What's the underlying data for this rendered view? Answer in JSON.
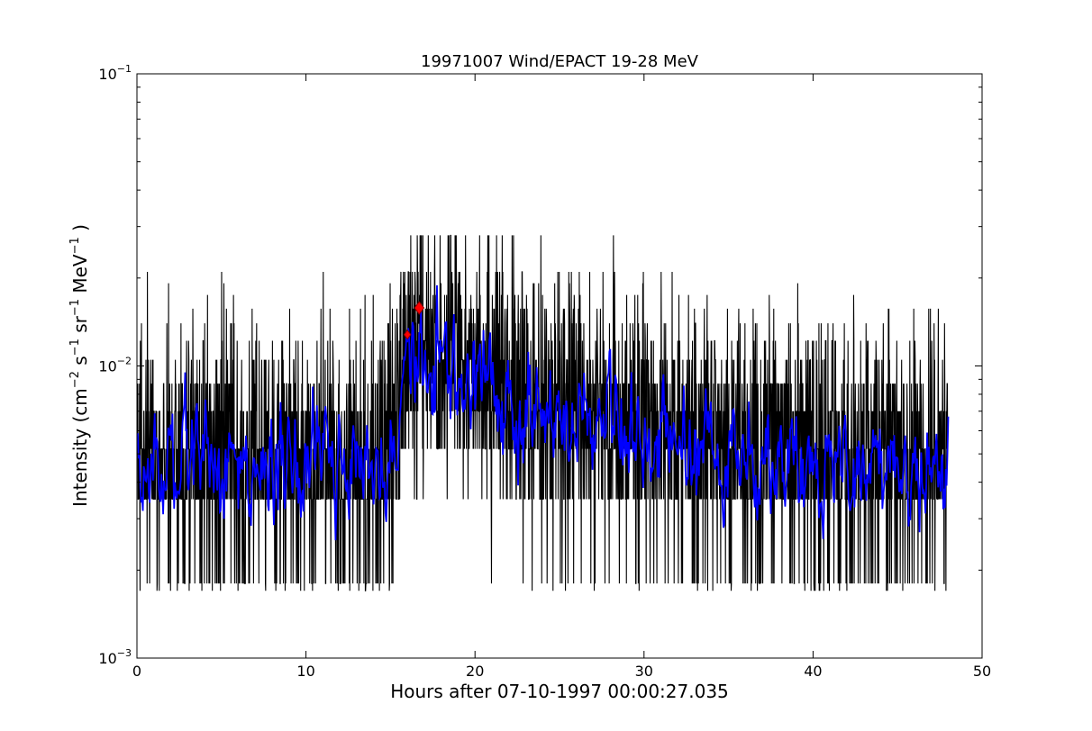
{
  "chart_data": {
    "type": "line",
    "title": "19971007 Wind/EPACT 19-28 MeV",
    "xlabel": "Hours after 07-10-1997 00:00:27.035",
    "ylabel_main": "Intensity (cm",
    "ylabel_parts": [
      {
        "text": "Intensity (cm",
        "sup": false
      },
      {
        "text": "−2",
        "sup": true
      },
      {
        "text": " s",
        "sup": false
      },
      {
        "text": "−1",
        "sup": true
      },
      {
        "text": " sr",
        "sup": false
      },
      {
        "text": "−1",
        "sup": true
      },
      {
        "text": " MeV",
        "sup": false
      },
      {
        "text": "−1",
        "sup": true
      },
      {
        "text": " )",
        "sup": false
      }
    ],
    "x_scale": "linear",
    "y_scale": "log",
    "xlim": [
      0,
      50
    ],
    "ylim": [
      0.001,
      0.1
    ],
    "x_ticks": [
      0,
      10,
      20,
      30,
      40,
      50
    ],
    "x_tick_labels": [
      "0",
      "10",
      "20",
      "30",
      "40",
      "50"
    ],
    "y_ticks": [
      {
        "value": 0.001,
        "base": "10",
        "exp": "−3"
      },
      {
        "value": 0.01,
        "base": "10",
        "exp": "−2"
      },
      {
        "value": 0.1,
        "base": "10",
        "exp": "−1"
      }
    ],
    "grid": false,
    "legend": "none",
    "series": [
      {
        "style": "raw-counts",
        "color": "#000000",
        "x_range": [
          0.05,
          48.0
        ],
        "sampling_hours": 0.0167,
        "count_levels": [
          0.0017,
          0.0018,
          0.0035,
          0.0052,
          0.007,
          0.0087,
          0.0105,
          0.0122,
          0.014,
          0.0157,
          0.0175,
          0.0192,
          0.021,
          0.028
        ],
        "mean_profile": [
          {
            "x": 0,
            "y": 0.0048
          },
          {
            "x": 15,
            "y": 0.0048
          },
          {
            "x": 16.2,
            "y": 0.0125
          },
          {
            "x": 17.5,
            "y": 0.0115
          },
          {
            "x": 20,
            "y": 0.0092
          },
          {
            "x": 23,
            "y": 0.0074
          },
          {
            "x": 26,
            "y": 0.0068
          },
          {
            "x": 30,
            "y": 0.0058
          },
          {
            "x": 35,
            "y": 0.0052
          },
          {
            "x": 40,
            "y": 0.0049
          },
          {
            "x": 48,
            "y": 0.0047
          }
        ]
      },
      {
        "style": "smoothed",
        "color": "#0000ff",
        "x_range": [
          0.05,
          48.0
        ],
        "profile": [
          {
            "x": 0,
            "y": 0.0046
          },
          {
            "x": 15,
            "y": 0.0047
          },
          {
            "x": 16.2,
            "y": 0.012
          },
          {
            "x": 17.5,
            "y": 0.011
          },
          {
            "x": 20,
            "y": 0.009
          },
          {
            "x": 23,
            "y": 0.0072
          },
          {
            "x": 26,
            "y": 0.0066
          },
          {
            "x": 30,
            "y": 0.0057
          },
          {
            "x": 35,
            "y": 0.0051
          },
          {
            "x": 40,
            "y": 0.0048
          },
          {
            "x": 48,
            "y": 0.0045
          }
        ]
      }
    ],
    "markers": [
      {
        "x": 16.0,
        "y": 0.0128,
        "shape": "diamond",
        "color": "#ff0000",
        "edge": "#880000",
        "size": "small"
      },
      {
        "x": 16.7,
        "y": 0.0158,
        "shape": "diamond",
        "color": "#ff0000",
        "edge": "#880000",
        "size": "large"
      }
    ]
  }
}
